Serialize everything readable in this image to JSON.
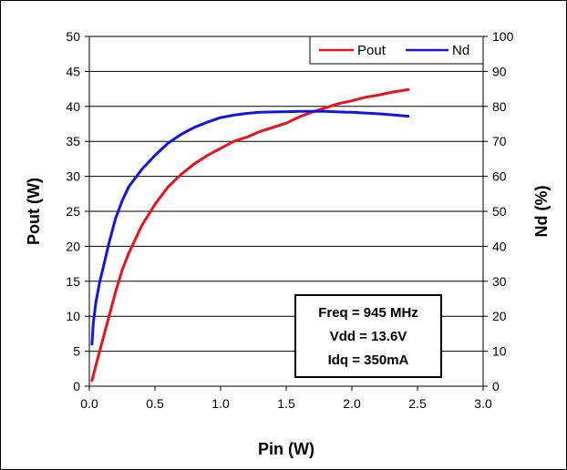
{
  "chart_data": {
    "type": "line",
    "title": "",
    "xlabel": "Pin (W)",
    "ylabel": "Pout (W)",
    "y2label": "Nd (%)",
    "xlim": [
      0,
      3.0
    ],
    "ylim": [
      0,
      50
    ],
    "y2lim": [
      0,
      100
    ],
    "x_ticks": [
      "0.0",
      "0.5",
      "1.0",
      "1.5",
      "2.0",
      "2.5",
      "3.0"
    ],
    "y_ticks": [
      "0",
      "5",
      "10",
      "15",
      "20",
      "25",
      "30",
      "35",
      "40",
      "45",
      "50"
    ],
    "y2_ticks": [
      "0",
      "10",
      "20",
      "30",
      "40",
      "50",
      "60",
      "70",
      "80",
      "90",
      "100"
    ],
    "grid": "horizontal",
    "legend": "top-right",
    "series": [
      {
        "name": "Pout",
        "axis": "left",
        "color": "#e8141b",
        "x": [
          0.02,
          0.05,
          0.1,
          0.15,
          0.2,
          0.25,
          0.3,
          0.4,
          0.5,
          0.6,
          0.7,
          0.8,
          0.9,
          1.0,
          1.1,
          1.2,
          1.3,
          1.4,
          1.5,
          1.6,
          1.7,
          1.8,
          1.9,
          2.0,
          2.1,
          2.2,
          2.3,
          2.43
        ],
        "values": [
          0.8,
          3.0,
          6.5,
          10.0,
          13.5,
          16.6,
          19.0,
          23.0,
          26.0,
          28.5,
          30.3,
          31.8,
          33.0,
          34.0,
          35.0,
          35.6,
          36.4,
          37.0,
          37.6,
          38.5,
          39.2,
          39.8,
          40.4,
          40.8,
          41.3,
          41.6,
          42.0,
          42.4
        ]
      },
      {
        "name": "Nd",
        "axis": "right",
        "color": "#1515e0",
        "x": [
          0.02,
          0.03,
          0.05,
          0.08,
          0.1,
          0.15,
          0.2,
          0.25,
          0.3,
          0.4,
          0.5,
          0.6,
          0.7,
          0.8,
          0.9,
          1.0,
          1.1,
          1.2,
          1.3,
          1.4,
          1.5,
          1.6,
          1.7,
          1.8,
          1.9,
          2.0,
          2.1,
          2.2,
          2.3,
          2.43
        ],
        "values": [
          12,
          18,
          24,
          30,
          33,
          41,
          48,
          53,
          57,
          62,
          66,
          69.5,
          72,
          74,
          75.5,
          76.8,
          77.5,
          78,
          78.3,
          78.4,
          78.5,
          78.6,
          78.6,
          78.6,
          78.4,
          78.3,
          78.1,
          77.9,
          77.6,
          77.2
        ]
      }
    ],
    "annotation": [
      "Freq = 945 MHz",
      "Vdd = 13.6V",
      "Idq = 350mA"
    ]
  }
}
